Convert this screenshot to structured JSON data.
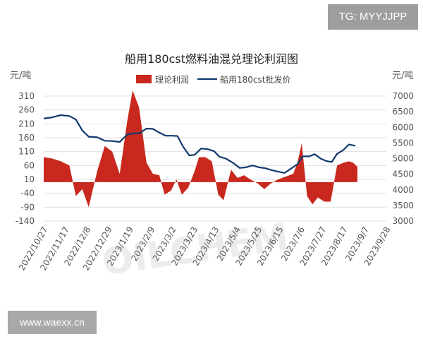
{
  "tag_label": "TG: MYYJJPP",
  "website_label": "www.waexx.cn",
  "watermark_text": "OILCHEM",
  "chart_data": {
    "type": "line",
    "title": "船用180cst燃料油混兑理论利润图",
    "left_unit": "元/吨",
    "right_unit": "元/吨",
    "left_ylim": [
      -140,
      310
    ],
    "left_ticks": [
      -140,
      -90,
      -40,
      10,
      60,
      110,
      160,
      210,
      260,
      310
    ],
    "right_ylim": [
      3000,
      7000
    ],
    "right_ticks": [
      3000,
      3500,
      4000,
      4500,
      5000,
      5500,
      6000,
      6500,
      7000
    ],
    "x_tick_labels": [
      "2022/10/27",
      "2022/11/17",
      "2022/12/8",
      "2022/12/29",
      "2023/1/19",
      "2023/2/9",
      "2023/3/2",
      "2023/3/23",
      "2023/4/13",
      "2023/5/4",
      "2023/5/25",
      "2023/6/15",
      "2023/7/6",
      "2023/7/27",
      "2023/8/17",
      "2023/9/7",
      "2023/9/28"
    ],
    "legend_position": "top",
    "colors": {
      "profit": "#c8281e",
      "price": "#0f3a6e",
      "axis_text": "#555555",
      "grid": "#e0e0e0"
    },
    "series": [
      {
        "name": "理论利润",
        "type": "area",
        "axis": "left",
        "points": [
          [
            0,
            90
          ],
          [
            0.4,
            85
          ],
          [
            0.8,
            75
          ],
          [
            1.2,
            60
          ],
          [
            1.5,
            -50
          ],
          [
            1.8,
            -25
          ],
          [
            2.1,
            -90
          ],
          [
            2.5,
            40
          ],
          [
            2.85,
            130
          ],
          [
            3.2,
            110
          ],
          [
            3.55,
            30
          ],
          [
            3.9,
            220
          ],
          [
            4.15,
            330
          ],
          [
            4.45,
            270
          ],
          [
            4.8,
            70
          ],
          [
            5.1,
            30
          ],
          [
            5.4,
            25
          ],
          [
            5.65,
            -45
          ],
          [
            5.95,
            -30
          ],
          [
            6.2,
            10
          ],
          [
            6.45,
            -45
          ],
          [
            6.75,
            -20
          ],
          [
            7.05,
            40
          ],
          [
            7.25,
            90
          ],
          [
            7.55,
            90
          ],
          [
            7.85,
            75
          ],
          [
            8.15,
            -45
          ],
          [
            8.4,
            -65
          ],
          [
            8.75,
            45
          ],
          [
            9.05,
            15
          ],
          [
            9.35,
            25
          ],
          [
            9.65,
            10
          ],
          [
            10.0,
            -5
          ],
          [
            10.3,
            -25
          ],
          [
            10.6,
            -5
          ],
          [
            10.95,
            10
          ],
          [
            11.3,
            20
          ],
          [
            11.65,
            30
          ],
          [
            11.85,
            70
          ],
          [
            12.05,
            140
          ],
          [
            12.3,
            -50
          ],
          [
            12.55,
            -80
          ],
          [
            12.8,
            -55
          ],
          [
            13.1,
            -70
          ],
          [
            13.4,
            -70
          ],
          [
            13.7,
            60
          ],
          [
            14.0,
            70
          ],
          [
            14.25,
            75
          ],
          [
            14.45,
            70
          ],
          [
            14.65,
            55
          ]
        ]
      },
      {
        "name": "船用180cst批发价",
        "type": "line",
        "axis": "right",
        "points": [
          [
            0,
            6280
          ],
          [
            0.4,
            6320
          ],
          [
            0.8,
            6390
          ],
          [
            1.2,
            6360
          ],
          [
            1.5,
            6250
          ],
          [
            1.8,
            5900
          ],
          [
            2.1,
            5700
          ],
          [
            2.5,
            5680
          ],
          [
            2.85,
            5570
          ],
          [
            3.2,
            5560
          ],
          [
            3.55,
            5530
          ],
          [
            3.9,
            5770
          ],
          [
            4.15,
            5800
          ],
          [
            4.5,
            5820
          ],
          [
            4.8,
            5960
          ],
          [
            5.1,
            5950
          ],
          [
            5.4,
            5830
          ],
          [
            5.7,
            5730
          ],
          [
            6.0,
            5730
          ],
          [
            6.25,
            5720
          ],
          [
            6.5,
            5390
          ],
          [
            6.8,
            5100
          ],
          [
            7.05,
            5120
          ],
          [
            7.35,
            5320
          ],
          [
            7.65,
            5300
          ],
          [
            7.95,
            5240
          ],
          [
            8.2,
            5060
          ],
          [
            8.5,
            5000
          ],
          [
            8.85,
            4860
          ],
          [
            9.15,
            4700
          ],
          [
            9.45,
            4720
          ],
          [
            9.75,
            4780
          ],
          [
            10.05,
            4720
          ],
          [
            10.35,
            4690
          ],
          [
            10.65,
            4630
          ],
          [
            10.95,
            4580
          ],
          [
            11.25,
            4540
          ],
          [
            11.55,
            4680
          ],
          [
            11.85,
            4820
          ],
          [
            12.1,
            5070
          ],
          [
            12.4,
            5070
          ],
          [
            12.65,
            5140
          ],
          [
            12.95,
            4990
          ],
          [
            13.2,
            4920
          ],
          [
            13.45,
            4890
          ],
          [
            13.7,
            5150
          ],
          [
            14.0,
            5280
          ],
          [
            14.25,
            5450
          ],
          [
            14.55,
            5410
          ]
        ]
      }
    ]
  }
}
